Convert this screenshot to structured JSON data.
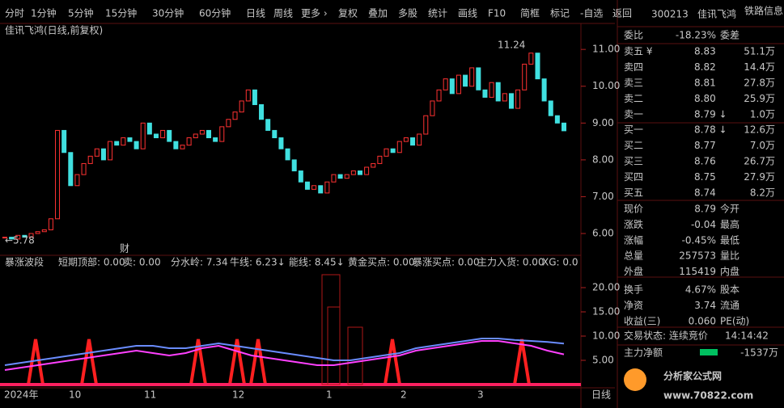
{
  "toolbar": {
    "periods": [
      "分时",
      "1分钟",
      "5分钟",
      "15分钟",
      "30分钟",
      "60分钟",
      "日线",
      "周线",
      "更多 ›"
    ],
    "tools": [
      "复权",
      "叠加",
      "多股",
      "统计",
      "画线",
      "F10",
      "简框",
      "标记",
      "-自选",
      "返回"
    ]
  },
  "price_chart": {
    "title": "佳讯飞鸿(日线,前复权)",
    "high_label": "11.24",
    "low_label": "←5.78",
    "marker": "财",
    "ylim": [
      5.43,
      11.64
    ],
    "yticks": [
      {
        "value": 11,
        "label": "11.00"
      },
      {
        "value": 10,
        "label": "10.00"
      },
      {
        "value": 9,
        "label": "9.00"
      },
      {
        "value": 8,
        "label": "8.00"
      },
      {
        "value": 7,
        "label": "7.00"
      },
      {
        "value": 6,
        "label": "6.00"
      }
    ],
    "closes": [
      5.9,
      5.85,
      5.95,
      5.9,
      6.0,
      6.05,
      6.1,
      6.4,
      8.8,
      8.2,
      7.3,
      7.6,
      7.9,
      8.1,
      8.3,
      8.0,
      8.5,
      8.4,
      8.6,
      8.5,
      8.3,
      9.0,
      8.7,
      8.6,
      8.8,
      8.5,
      8.3,
      8.4,
      8.6,
      8.7,
      8.8,
      8.6,
      8.5,
      8.9,
      9.1,
      9.3,
      9.6,
      9.9,
      9.5,
      9.1,
      8.8,
      8.6,
      8.3,
      8.0,
      7.7,
      7.4,
      7.2,
      7.3,
      7.1,
      7.4,
      7.6,
      7.5,
      7.6,
      7.7,
      7.6,
      7.8,
      7.9,
      8.1,
      8.3,
      8.2,
      8.5,
      8.6,
      8.4,
      8.7,
      9.2,
      9.6,
      9.9,
      10.2,
      9.8,
      10.3,
      10.0,
      10.5,
      9.9,
      9.7,
      10.1,
      9.6,
      9.8,
      9.4,
      9.9,
      10.6,
      10.9,
      10.2,
      9.6,
      9.2,
      9.0,
      8.79
    ]
  },
  "indicator": {
    "name": "暴涨波段",
    "items": [
      {
        "text": "短期顶部: 0.00",
        "color": "#e0e0e0"
      },
      {
        "text": "卖: 0.00",
        "color": "#00e600"
      },
      {
        "text": "分水岭: 7.34",
        "color": "#e0e0e0"
      },
      {
        "text": "牛线: 6.23↓",
        "color": "#ff40ff"
      },
      {
        "text": "能线: 8.45↓",
        "color": "#6a8cff"
      },
      {
        "text": "黄金买点: 0.00",
        "color": "#ffff40"
      },
      {
        "text": "暴涨买点: 0.00",
        "color": "#ff3232"
      },
      {
        "text": "主力入货: 0.00",
        "color": "#a02020"
      },
      {
        "text": "XG: 0.0",
        "color": "#ff40ff"
      }
    ],
    "ylim": [
      0,
      26
    ],
    "yticks": [
      {
        "value": 20,
        "label": "20.00"
      },
      {
        "value": 15,
        "label": "15.00"
      },
      {
        "value": 10,
        "label": "10.00"
      },
      {
        "value": 5,
        "label": "5.00"
      }
    ],
    "series": [
      {
        "color": "#ff40ff",
        "values": [
          3,
          3.5,
          4,
          4.5,
          5,
          5.5,
          6,
          6.5,
          7,
          6.5,
          6,
          6.5,
          7.5,
          8,
          7,
          6,
          5.5,
          5,
          4.5,
          4,
          4,
          4.5,
          5,
          5.5,
          6,
          7,
          7.5,
          8,
          8.5,
          9,
          9,
          8.5,
          8,
          7,
          6.23
        ]
      },
      {
        "color": "#6a8cff",
        "values": [
          4,
          4.5,
          5,
          5.5,
          6,
          6.5,
          7,
          7.5,
          8,
          8,
          7.5,
          7.5,
          8,
          8.5,
          8,
          7.5,
          7,
          6.5,
          6,
          5.5,
          5,
          5,
          5.5,
          6,
          6.5,
          7.5,
          8,
          8.5,
          9,
          9.5,
          9.5,
          9.2,
          9,
          8.8,
          8.45
        ]
      }
    ]
  },
  "xaxis": {
    "labels": [
      "2024年",
      "10",
      "11",
      "12",
      "1",
      "2",
      "3"
    ],
    "period": "日线"
  },
  "quote": {
    "code": "300213",
    "name": "佳讯飞鸿",
    "sector": "铁路信息",
    "weibi": {
      "label": "委比",
      "value": "-18.23%",
      "label2": "委差"
    },
    "sells": [
      [
        "卖五 ¥",
        "8.83",
        "51.1万"
      ],
      [
        "卖四",
        "8.82",
        "14.4万"
      ],
      [
        "卖三",
        "8.81",
        "27.8万"
      ],
      [
        "卖二",
        "8.80",
        "25.9万"
      ],
      [
        "卖一",
        "8.79 ↓",
        "1.0万"
      ]
    ],
    "buys": [
      [
        "买一",
        "8.78 ↓",
        "12.6万"
      ],
      [
        "买二",
        "8.77",
        "7.0万"
      ],
      [
        "买三",
        "8.76",
        "26.7万"
      ],
      [
        "买四",
        "8.75",
        "27.9万"
      ],
      [
        "买五",
        "8.74",
        "8.2万"
      ]
    ],
    "stats": [
      {
        "label": "现价",
        "value": "8.79",
        "label2": "今开",
        "color": "#00e600"
      },
      {
        "label": "涨跌",
        "value": "-0.04",
        "label2": "最高",
        "color": "#00e600"
      },
      {
        "label": "涨幅",
        "value": "-0.45%",
        "label2": "最低",
        "color": "#00e600"
      },
      {
        "label": "总量",
        "value": "257573",
        "label2": "量比",
        "color": "#f0c040"
      },
      {
        "label": "外盘",
        "value": "115419",
        "label2": "内盘",
        "color": "#ff3232"
      },
      {
        "label": "换手",
        "value": "4.67%",
        "label2": "股本",
        "color": "#e0e0e0"
      },
      {
        "label": "净资",
        "value": "3.74",
        "label2": "流通",
        "color": "#e0e0e0"
      },
      {
        "label": "收益(三)",
        "value": "0.060",
        "label2": "PE(动)",
        "color": "#e0e0e0"
      }
    ],
    "status": {
      "label": "交易状态: 连续竞价",
      "time": "14:14:42"
    },
    "net": {
      "label": "主力净额",
      "value": "-1537万"
    }
  },
  "watermark": {
    "title": "分析家公式网",
    "url": "www.70822.com"
  }
}
